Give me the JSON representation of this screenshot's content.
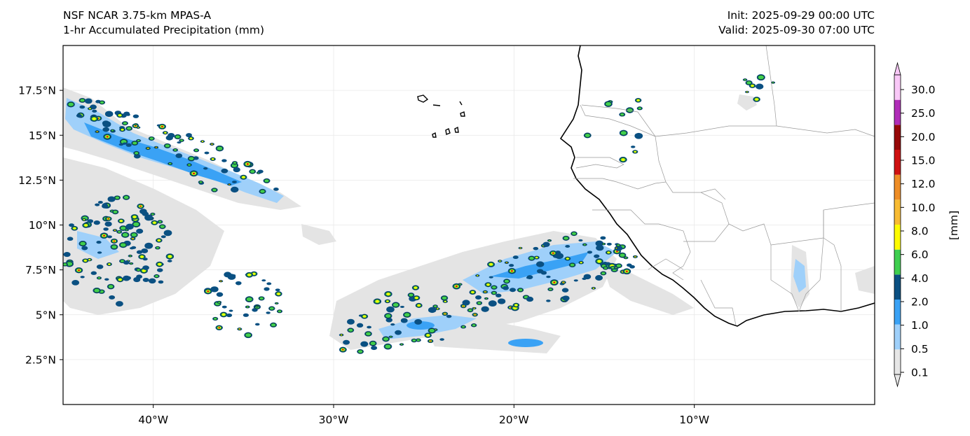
{
  "header": {
    "model_line": "NSF NCAR 3.75-km MPAS-A",
    "field_line": "1-hr Accumulated Precipitation (mm)",
    "init_line": "Init: 2025-09-29 00:00 UTC",
    "valid_line": "Valid: 2025-09-30 07:00 UTC"
  },
  "map": {
    "lon_range": [
      -45,
      0
    ],
    "lat_range": [
      0,
      20
    ],
    "lat_ticks": [
      {
        "value": 2.5,
        "label": "2.5°N"
      },
      {
        "value": 5,
        "label": "5°N"
      },
      {
        "value": 7.5,
        "label": "7.5°N"
      },
      {
        "value": 10,
        "label": "10°N"
      },
      {
        "value": 12.5,
        "label": "12.5°N"
      },
      {
        "value": 15,
        "label": "15°N"
      },
      {
        "value": 17.5,
        "label": "17.5°N"
      }
    ],
    "lon_ticks": [
      {
        "value": -40,
        "label": "40°W"
      },
      {
        "value": -30,
        "label": "30°W"
      },
      {
        "value": -20,
        "label": "20°W"
      },
      {
        "value": -10,
        "label": "10°W"
      }
    ],
    "gridlines": true
  },
  "colorbar": {
    "label": "[mm]",
    "levels": [
      "0.1",
      "0.5",
      "1.0",
      "2.0",
      "4.0",
      "6.0",
      "8.0",
      "10.0",
      "12.0",
      "15.0",
      "20.0",
      "25.0",
      "30.0"
    ],
    "colors": [
      "#e6e6e6",
      "#9fd0fa",
      "#3aa2f5",
      "#0a5082",
      "#3fcf4f",
      "#fdfb00",
      "#f8bb33",
      "#ee8d26",
      "#cf1111",
      "#970808",
      "#b02db8",
      "#f9c8f7"
    ],
    "extend": "both"
  }
}
